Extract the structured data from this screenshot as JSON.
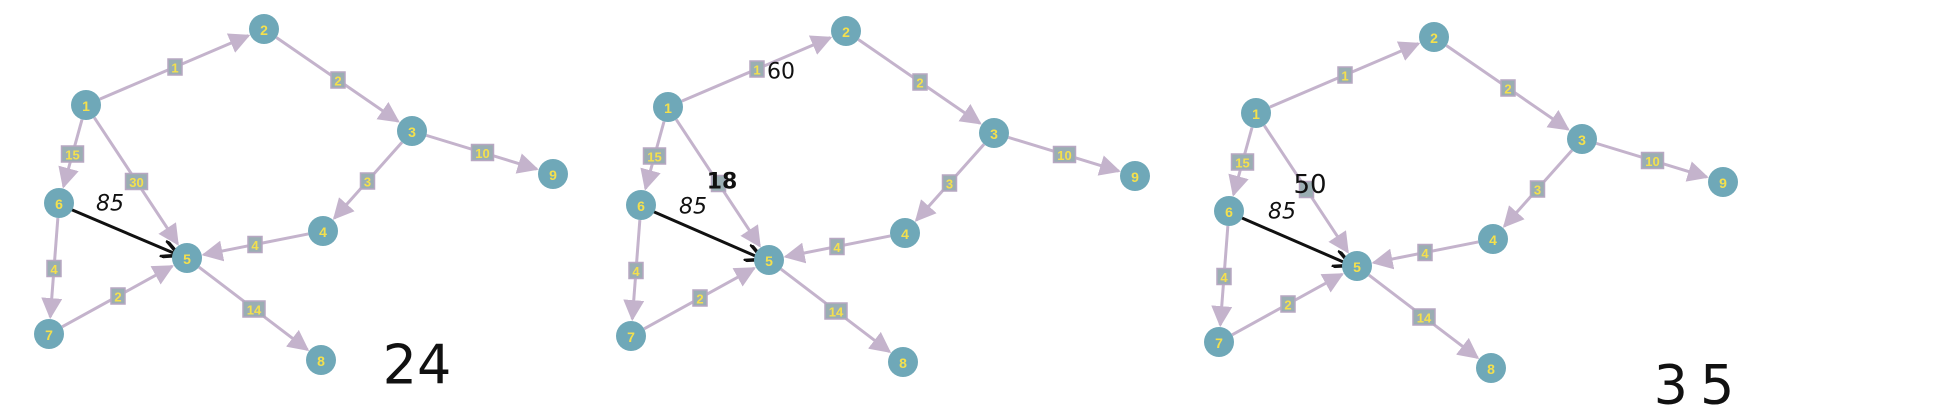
{
  "colors": {
    "node_fill": "#6fa8b8",
    "node_label": "#f4e04d",
    "edge": "#c4b3cc",
    "weight_box_fill": "#9aaeb3",
    "weight_box_stroke": "#b7a7c2",
    "weight_text": "#f4e04d",
    "ink": "#111111"
  },
  "panels": [
    {
      "nodes": [
        {
          "id": "1",
          "label": "1"
        },
        {
          "id": "2",
          "label": "2"
        },
        {
          "id": "3",
          "label": "3"
        },
        {
          "id": "4",
          "label": "4"
        },
        {
          "id": "5",
          "label": "5"
        },
        {
          "id": "6",
          "label": "6"
        },
        {
          "id": "7",
          "label": "7"
        },
        {
          "id": "8",
          "label": "8"
        },
        {
          "id": "9",
          "label": "9"
        }
      ],
      "edges": [
        {
          "from": "1",
          "to": "2",
          "weight": "1"
        },
        {
          "from": "2",
          "to": "3",
          "weight": "2"
        },
        {
          "from": "3",
          "to": "9",
          "weight": "10"
        },
        {
          "from": "3",
          "to": "4",
          "weight": "3"
        },
        {
          "from": "4",
          "to": "5",
          "weight": "4"
        },
        {
          "from": "1",
          "to": "6",
          "weight": "15"
        },
        {
          "from": "1",
          "to": "5",
          "weight": "30"
        },
        {
          "from": "6",
          "to": "7",
          "weight": "4"
        },
        {
          "from": "7",
          "to": "5",
          "weight": "2"
        },
        {
          "from": "5",
          "to": "8",
          "weight": "14"
        }
      ],
      "annotations": [
        {
          "text": "85",
          "kind": "edge-label"
        }
      ],
      "result": "24"
    },
    {
      "nodes": [
        {
          "id": "1",
          "label": "1"
        },
        {
          "id": "2",
          "label": "2"
        },
        {
          "id": "3",
          "label": "3"
        },
        {
          "id": "4",
          "label": "4"
        },
        {
          "id": "5",
          "label": "5"
        },
        {
          "id": "6",
          "label": "6"
        },
        {
          "id": "7",
          "label": "7"
        },
        {
          "id": "8",
          "label": "8"
        },
        {
          "id": "9",
          "label": "9"
        }
      ],
      "edges": [
        {
          "from": "1",
          "to": "2",
          "weight": "1"
        },
        {
          "from": "2",
          "to": "3",
          "weight": "2"
        },
        {
          "from": "3",
          "to": "9",
          "weight": "10"
        },
        {
          "from": "3",
          "to": "4",
          "weight": "3"
        },
        {
          "from": "4",
          "to": "5",
          "weight": "4"
        },
        {
          "from": "1",
          "to": "6",
          "weight": "15"
        },
        {
          "from": "1",
          "to": "5",
          "weight": ""
        },
        {
          "from": "6",
          "to": "7",
          "weight": "4"
        },
        {
          "from": "7",
          "to": "5",
          "weight": "2"
        },
        {
          "from": "5",
          "to": "8",
          "weight": "14"
        }
      ],
      "annotations": [
        {
          "text": "85",
          "kind": "edge-label"
        },
        {
          "text": "60",
          "kind": "overwrite"
        },
        {
          "text": "18",
          "kind": "overwrite"
        }
      ],
      "result": ""
    },
    {
      "nodes": [
        {
          "id": "1",
          "label": "1"
        },
        {
          "id": "2",
          "label": "2"
        },
        {
          "id": "3",
          "label": "3"
        },
        {
          "id": "4",
          "label": "4"
        },
        {
          "id": "5",
          "label": "5"
        },
        {
          "id": "6",
          "label": "6"
        },
        {
          "id": "7",
          "label": "7"
        },
        {
          "id": "8",
          "label": "8"
        },
        {
          "id": "9",
          "label": "9"
        }
      ],
      "edges": [
        {
          "from": "1",
          "to": "2",
          "weight": "1"
        },
        {
          "from": "2",
          "to": "3",
          "weight": "2"
        },
        {
          "from": "3",
          "to": "9",
          "weight": "10"
        },
        {
          "from": "3",
          "to": "4",
          "weight": "3"
        },
        {
          "from": "4",
          "to": "5",
          "weight": "4"
        },
        {
          "from": "1",
          "to": "6",
          "weight": "15"
        },
        {
          "from": "1",
          "to": "5",
          "weight": ""
        },
        {
          "from": "6",
          "to": "7",
          "weight": "4"
        },
        {
          "from": "7",
          "to": "5",
          "weight": "2"
        },
        {
          "from": "5",
          "to": "8",
          "weight": "14"
        }
      ],
      "annotations": [
        {
          "text": "85",
          "kind": "edge-label"
        },
        {
          "text": "50",
          "kind": "overwrite"
        }
      ],
      "result": "35"
    }
  ]
}
